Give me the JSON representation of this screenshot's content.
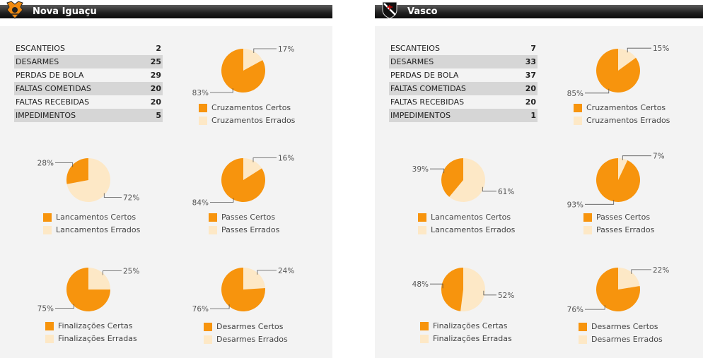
{
  "colors": {
    "correct": "#f7940d",
    "wrong": "#fde8c6",
    "leader": "#555555"
  },
  "teams": [
    {
      "name": "Nova Iguaçu",
      "logo_icon": "nova-iguacu-crest",
      "stats": [
        {
          "label": "ESCANTEIOS",
          "value": "2"
        },
        {
          "label": "DESARMES",
          "value": "25"
        },
        {
          "label": "PERDAS DE BOLA",
          "value": "29"
        },
        {
          "label": "FALTAS COMETIDAS",
          "value": "20"
        },
        {
          "label": "FALTAS RECEBIDAS",
          "value": "20"
        },
        {
          "label": "IMPEDIMENTOS",
          "value": "5"
        }
      ],
      "charts": [
        {
          "key": "cruzamentos",
          "legend": [
            "Cruzamentos Certos",
            "Cruzamentos Errados"
          ],
          "correct": 83,
          "wrong": 17
        },
        {
          "key": "lancamentos",
          "legend": [
            "Lancamentos Certos",
            "Lancamentos Errados"
          ],
          "correct": 28,
          "wrong": 72
        },
        {
          "key": "passes",
          "legend": [
            "Passes Certos",
            "Passes Errados"
          ],
          "correct": 84,
          "wrong": 16
        },
        {
          "key": "finalizacoes",
          "legend": [
            "Finalizações Certas",
            "Finalizações Erradas"
          ],
          "correct": 75,
          "wrong": 25
        },
        {
          "key": "desarmes",
          "legend": [
            "Desarmes Certos",
            "Desarmes Errados"
          ],
          "correct": 76,
          "wrong": 24
        }
      ]
    },
    {
      "name": "Vasco",
      "logo_icon": "vasco-crest",
      "stats": [
        {
          "label": "ESCANTEIOS",
          "value": "7"
        },
        {
          "label": "DESARMES",
          "value": "33"
        },
        {
          "label": "PERDAS DE BOLA",
          "value": "37"
        },
        {
          "label": "FALTAS COMETIDAS",
          "value": "20"
        },
        {
          "label": "FALTAS RECEBIDAS",
          "value": "20"
        },
        {
          "label": "IMPEDIMENTOS",
          "value": "1"
        }
      ],
      "charts": [
        {
          "key": "cruzamentos",
          "legend": [
            "Cruzamentos Certos",
            "Cruzamentos Errados"
          ],
          "correct": 85,
          "wrong": 15
        },
        {
          "key": "lancamentos",
          "legend": [
            "Lancamentos Certos",
            "Lancamentos Errados"
          ],
          "correct": 39,
          "wrong": 61
        },
        {
          "key": "passes",
          "legend": [
            "Passes Certos",
            "Passes Errados"
          ],
          "correct": 93,
          "wrong": 7
        },
        {
          "key": "finalizacoes",
          "legend": [
            "Finalizações Certas",
            "Finalizações Erradas"
          ],
          "correct": 48,
          "wrong": 52
        },
        {
          "key": "desarmes",
          "legend": [
            "Desarmes Certos",
            "Desarmes Errados"
          ],
          "correct": 76,
          "wrong": 22
        }
      ]
    }
  ],
  "chart_data": [
    {
      "type": "pie",
      "team": "Nova Iguaçu",
      "categories": [
        "Cruzamentos Certos",
        "Cruzamentos Errados"
      ],
      "values": [
        83,
        17
      ]
    },
    {
      "type": "pie",
      "team": "Nova Iguaçu",
      "categories": [
        "Lancamentos Certos",
        "Lancamentos Errados"
      ],
      "values": [
        28,
        72
      ]
    },
    {
      "type": "pie",
      "team": "Nova Iguaçu",
      "categories": [
        "Passes Certos",
        "Passes Errados"
      ],
      "values": [
        84,
        16
      ]
    },
    {
      "type": "pie",
      "team": "Nova Iguaçu",
      "categories": [
        "Finalizações Certas",
        "Finalizações Erradas"
      ],
      "values": [
        75,
        25
      ]
    },
    {
      "type": "pie",
      "team": "Nova Iguaçu",
      "categories": [
        "Desarmes Certos",
        "Desarmes Errados"
      ],
      "values": [
        76,
        24
      ]
    },
    {
      "type": "pie",
      "team": "Vasco",
      "categories": [
        "Cruzamentos Certos",
        "Cruzamentos Errados"
      ],
      "values": [
        85,
        15
      ]
    },
    {
      "type": "pie",
      "team": "Vasco",
      "categories": [
        "Lancamentos Certos",
        "Lancamentos Errados"
      ],
      "values": [
        39,
        61
      ]
    },
    {
      "type": "pie",
      "team": "Vasco",
      "categories": [
        "Passes Certos",
        "Passes Errados"
      ],
      "values": [
        93,
        7
      ]
    },
    {
      "type": "pie",
      "team": "Vasco",
      "categories": [
        "Finalizações Certas",
        "Finalizações Erradas"
      ],
      "values": [
        48,
        52
      ]
    },
    {
      "type": "pie",
      "team": "Vasco",
      "categories": [
        "Desarmes Certos",
        "Desarmes Errados"
      ],
      "values": [
        76,
        22
      ]
    }
  ]
}
